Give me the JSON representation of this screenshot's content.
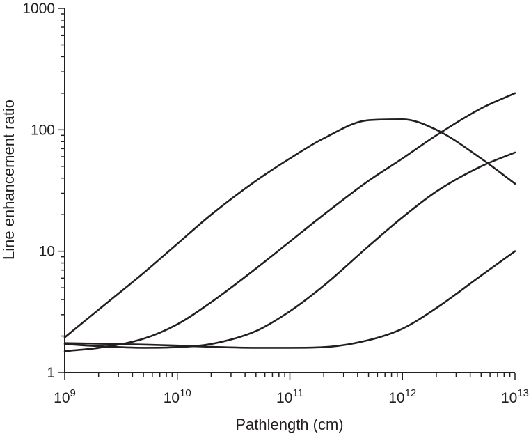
{
  "chart_data": {
    "type": "line",
    "title": "",
    "xlabel": "Pathlength (cm)",
    "ylabel": "Line enhancement ratio",
    "xscale": "log",
    "yscale": "log",
    "xlim": [
      1000000000.0,
      10000000000000.0
    ],
    "ylim": [
      1,
      1000
    ],
    "grid": false,
    "legend": "none",
    "line_color": "#231f20",
    "x_ticks": [
      {
        "value": 1000000000.0,
        "base": "10",
        "exp": "9"
      },
      {
        "value": 10000000000.0,
        "base": "10",
        "exp": "10"
      },
      {
        "value": 100000000000.0,
        "base": "10",
        "exp": "11"
      },
      {
        "value": 1000000000000.0,
        "base": "10",
        "exp": "12"
      },
      {
        "value": 10000000000000.0,
        "base": "10",
        "exp": "13"
      }
    ],
    "y_ticks": [
      {
        "value": 1,
        "label": "1"
      },
      {
        "value": 10,
        "label": "10"
      },
      {
        "value": 100,
        "label": "100"
      },
      {
        "value": 1000,
        "label": "1000"
      }
    ],
    "x": [
      1000000000.0,
      2000000000.0,
      5000000000.0,
      10000000000.0,
      20000000000.0,
      50000000000.0,
      100000000000.0,
      200000000000.0,
      500000000000.0,
      1000000000000.0,
      2000000000000.0,
      5000000000000.0,
      10000000000000.0
    ],
    "series": [
      {
        "values": [
          1.95,
          3.3,
          6.6,
          11.5,
          20,
          38,
          58,
          85,
          120,
          122,
          100,
          58,
          36
        ]
      },
      {
        "values": [
          1.5,
          1.6,
          1.9,
          2.5,
          3.8,
          7.2,
          12,
          20,
          38,
          58,
          90,
          150,
          200
        ]
      },
      {
        "values": [
          1.72,
          1.65,
          1.6,
          1.62,
          1.72,
          2.2,
          3.2,
          5.2,
          11,
          19,
          31,
          50,
          65
        ]
      },
      {
        "values": [
          1.75,
          1.73,
          1.7,
          1.67,
          1.63,
          1.6,
          1.6,
          1.62,
          1.85,
          2.3,
          3.4,
          6.3,
          10
        ]
      }
    ]
  }
}
